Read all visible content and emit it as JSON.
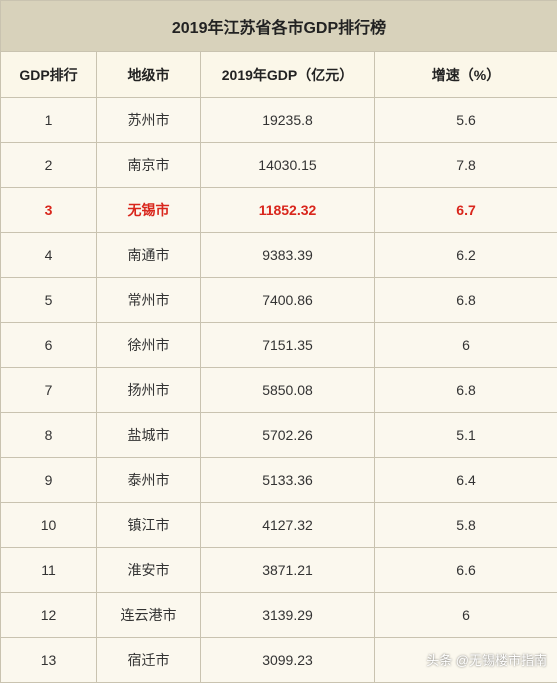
{
  "title": "2019年江苏省各市GDP排行榜",
  "headers": [
    "GDP排行",
    "地级市",
    "2019年GDP（亿元）",
    "增速（%）"
  ],
  "highlight_color": "#d9261c",
  "rows": [
    {
      "rank": "1",
      "city": "苏州市",
      "gdp": "19235.8",
      "growth": "5.6",
      "highlight": false
    },
    {
      "rank": "2",
      "city": "南京市",
      "gdp": "14030.15",
      "growth": "7.8",
      "highlight": false
    },
    {
      "rank": "3",
      "city": "无锡市",
      "gdp": "11852.32",
      "growth": "6.7",
      "highlight": true
    },
    {
      "rank": "4",
      "city": "南通市",
      "gdp": "9383.39",
      "growth": "6.2",
      "highlight": false
    },
    {
      "rank": "5",
      "city": "常州市",
      "gdp": "7400.86",
      "growth": "6.8",
      "highlight": false
    },
    {
      "rank": "6",
      "city": "徐州市",
      "gdp": "7151.35",
      "growth": "6",
      "highlight": false
    },
    {
      "rank": "7",
      "city": "扬州市",
      "gdp": "5850.08",
      "growth": "6.8",
      "highlight": false
    },
    {
      "rank": "8",
      "city": "盐城市",
      "gdp": "5702.26",
      "growth": "5.1",
      "highlight": false
    },
    {
      "rank": "9",
      "city": "泰州市",
      "gdp": "5133.36",
      "growth": "6.4",
      "highlight": false
    },
    {
      "rank": "10",
      "city": "镇江市",
      "gdp": "4127.32",
      "growth": "5.8",
      "highlight": false
    },
    {
      "rank": "11",
      "city": "淮安市",
      "gdp": "3871.21",
      "growth": "6.6",
      "highlight": false
    },
    {
      "rank": "12",
      "city": "连云港市",
      "gdp": "3139.29",
      "growth": "6",
      "highlight": false
    },
    {
      "rank": "13",
      "city": "宿迁市",
      "gdp": "3099.23",
      "growth": "",
      "highlight": false
    }
  ],
  "watermark": "头条 @无锡楼市指南"
}
